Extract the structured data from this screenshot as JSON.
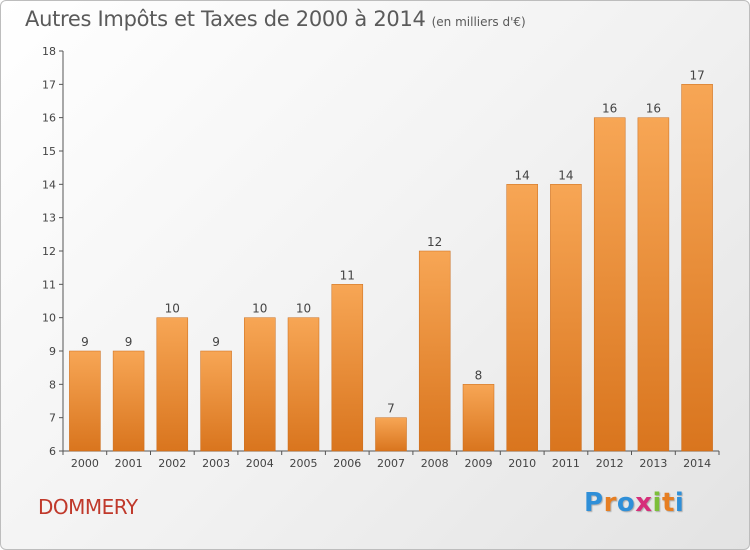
{
  "chart_data": {
    "type": "bar",
    "title": "Autres Impôts et Taxes de 2000 à 2014",
    "subtitle": "(en milliers d'€)",
    "categories": [
      "2000",
      "2001",
      "2002",
      "2003",
      "2004",
      "2005",
      "2006",
      "2007",
      "2008",
      "2009",
      "2010",
      "2011",
      "2012",
      "2013",
      "2014"
    ],
    "values": [
      9,
      9,
      10,
      9,
      10,
      10,
      11,
      7,
      12,
      8,
      14,
      14,
      16,
      16,
      17
    ],
    "ylim": [
      6,
      18
    ],
    "yticks": [
      6,
      7,
      8,
      9,
      10,
      11,
      12,
      13,
      14,
      15,
      16,
      17,
      18
    ],
    "grid": false,
    "bar_color_top": "#f7a655",
    "bar_color_bottom": "#d9751e"
  },
  "commune": "DOMMERY",
  "logo": {
    "letters": [
      {
        "ch": "P",
        "color": "#2f8fd8"
      },
      {
        "ch": "r",
        "color": "#e67e22"
      },
      {
        "ch": "o",
        "color": "#2f8fd8"
      },
      {
        "ch": "x",
        "color": "#d62f7a"
      },
      {
        "ch": "i",
        "color": "#7cbf3a"
      },
      {
        "ch": "t",
        "color": "#e67e22"
      },
      {
        "ch": "i",
        "color": "#2f8fd8"
      }
    ]
  }
}
